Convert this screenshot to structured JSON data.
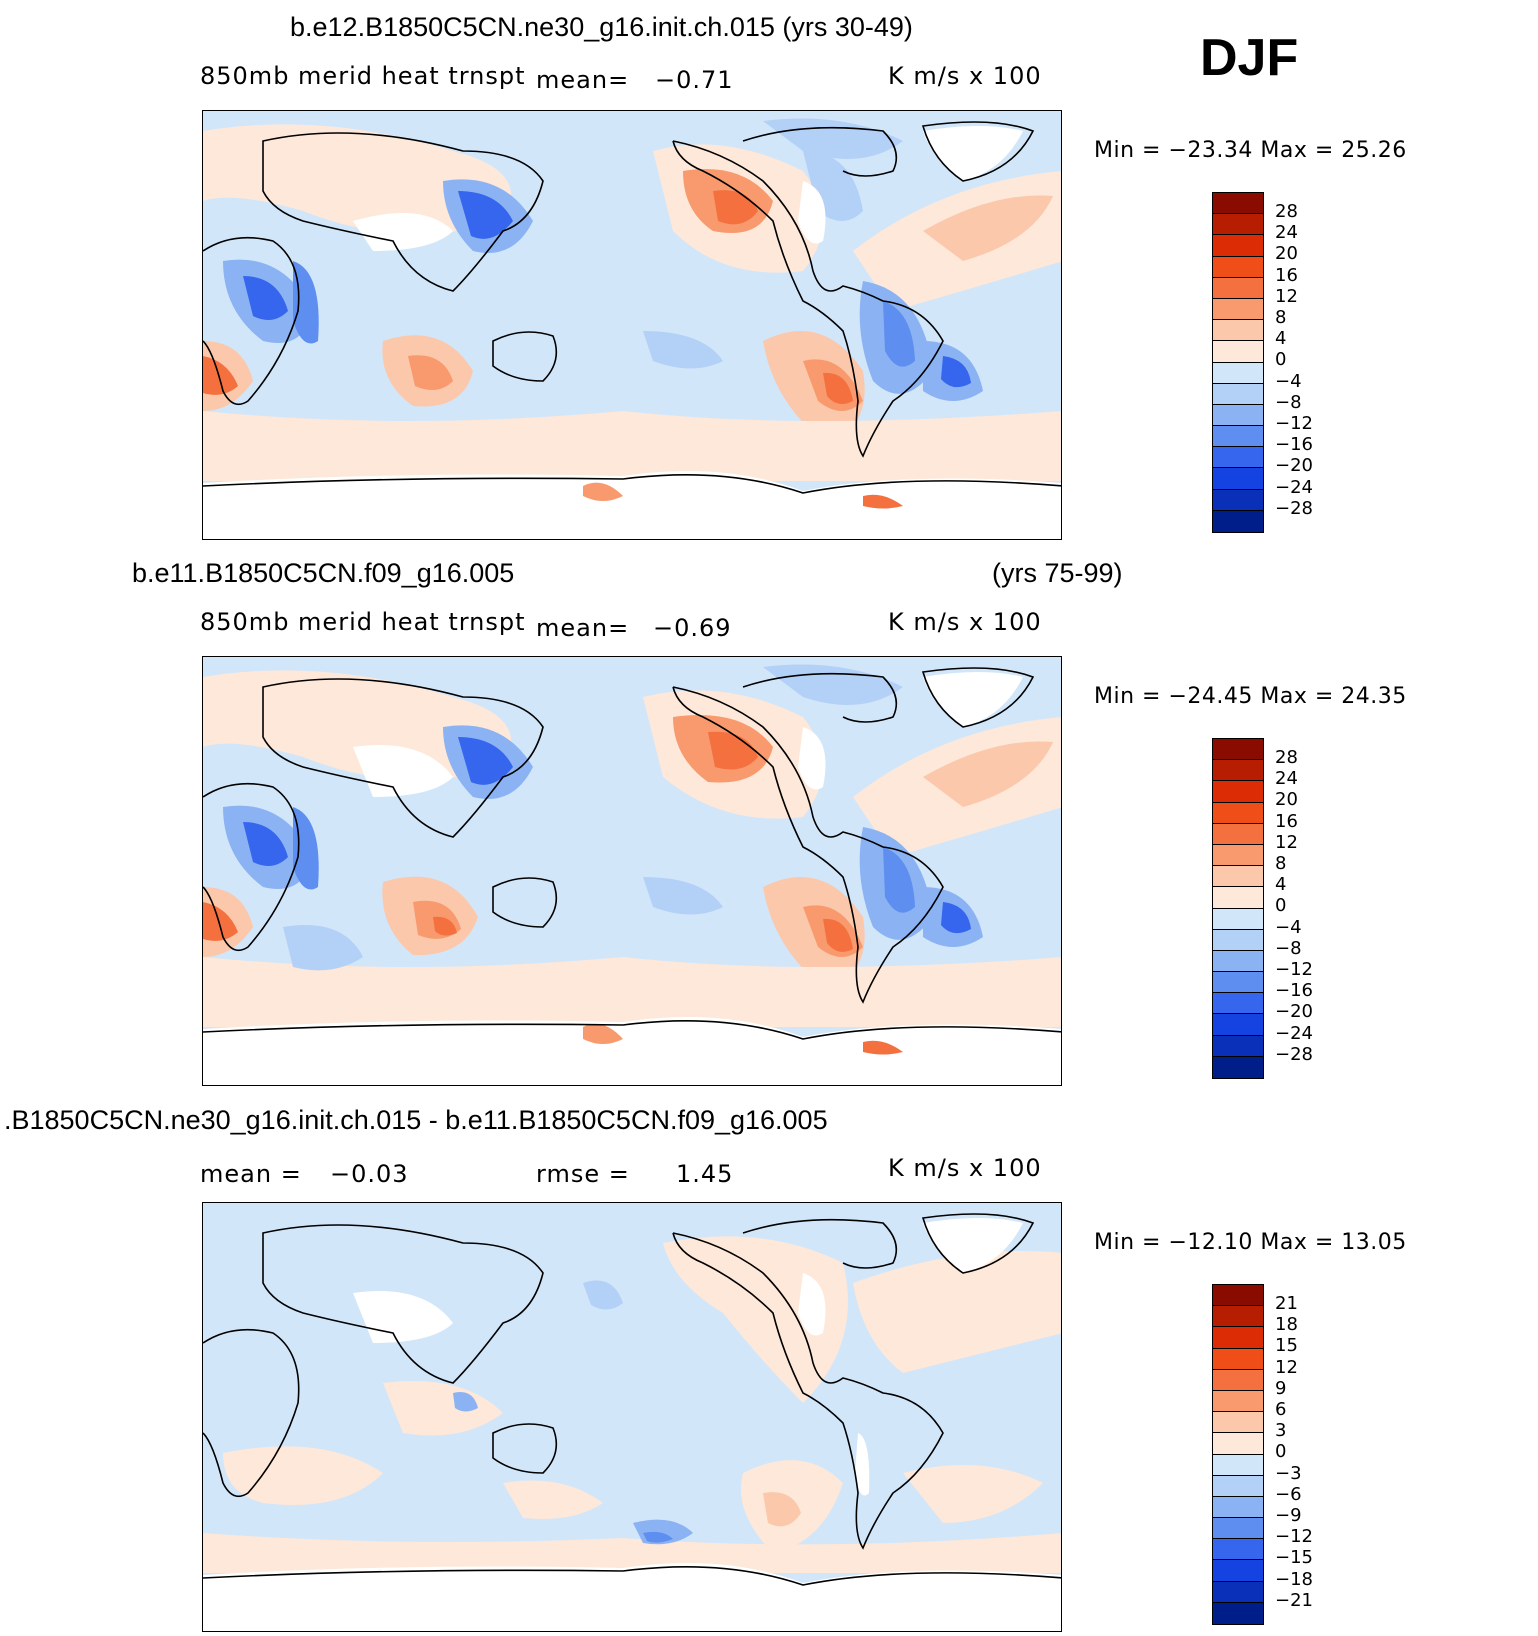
{
  "season": "DJF",
  "colors": {
    "warm": [
      "#fde8d9",
      "#fbc8ab",
      "#f89a6e",
      "#f4713f",
      "#f04e18",
      "#dc2c05",
      "#b71d00",
      "#8a0b00"
    ],
    "cool": [
      "#d2e6fa",
      "#b3d0f7",
      "#8bb3f3",
      "#5e8ef0",
      "#3566ed",
      "#1443e2",
      "#0a2fb8",
      "#001e8a"
    ],
    "white": "#ffffff"
  },
  "panels": [
    {
      "title": "b.e12.B1850C5CN.ne30_g16.init.ch.015 (yrs 30-49)",
      "variable": "850mb  merid  heat  trnspt",
      "stat_label": "mean=",
      "stat_value": "−0.71",
      "units": "K  m/s  x  100",
      "min_max": "Min  =  −23.34  Max  =    25.26",
      "min": -23.34,
      "max": 25.26,
      "levels": [
        "28",
        "24",
        "20",
        "16",
        "12",
        "8",
        "4",
        "0",
        "−4",
        "−8",
        "−12",
        "−16",
        "−20",
        "−24",
        "−28"
      ]
    },
    {
      "title_left": "b.e11.B1850C5CN.f09_g16.005",
      "title_right": "(yrs 75-99)",
      "variable": "850mb  merid  heat  trnspt",
      "stat_label": "mean=",
      "stat_value": "−0.69",
      "units": "K  m/s  x  100",
      "min_max": "Min  =  −24.45  Max  =    24.35",
      "min": -24.45,
      "max": 24.35,
      "levels": [
        "28",
        "24",
        "20",
        "16",
        "12",
        "8",
        "4",
        "0",
        "−4",
        "−8",
        "−12",
        "−16",
        "−20",
        "−24",
        "−28"
      ]
    },
    {
      "title": ".B1850C5CN.ne30_g16.init.ch.015 - b.e11.B1850C5CN.f09_g16.005",
      "stat_label": "mean  =",
      "stat_value": "−0.03",
      "rmse_label": "rmse  =",
      "rmse_value": "1.45",
      "units": "K  m/s  x  100",
      "min_max": "Min  =  −12.10  Max  =    13.05",
      "min": -12.1,
      "max": 13.05,
      "levels": [
        "21",
        "18",
        "15",
        "12",
        "9",
        "6",
        "3",
        "0",
        "−3",
        "−6",
        "−9",
        "−12",
        "−15",
        "−18",
        "−21"
      ]
    }
  ]
}
